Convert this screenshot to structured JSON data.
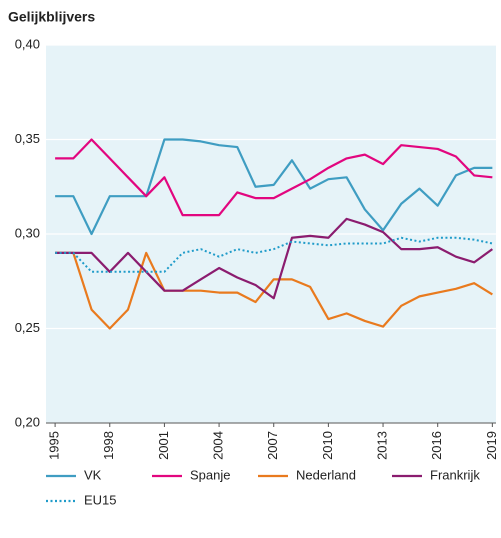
{
  "chart_data": {
    "type": "line",
    "title": "Gelijkblijvers",
    "x": [
      1995,
      1996,
      1997,
      1998,
      1999,
      2000,
      2001,
      2002,
      2003,
      2004,
      2005,
      2006,
      2007,
      2008,
      2009,
      2010,
      2011,
      2012,
      2013,
      2014,
      2015,
      2016,
      2017,
      2018,
      2019
    ],
    "xlim": [
      1994.5,
      2019.2
    ],
    "xticks": [
      1995,
      1998,
      2001,
      2004,
      2007,
      2010,
      2013,
      2016,
      2019
    ],
    "ylim": [
      0.2,
      0.4
    ],
    "yticks": [
      {
        "value": 0.2,
        "label": "0,20"
      },
      {
        "value": 0.25,
        "label": "0,25"
      },
      {
        "value": 0.3,
        "label": "0,30"
      },
      {
        "value": 0.35,
        "label": "0,35"
      },
      {
        "value": 0.4,
        "label": "0,40"
      }
    ],
    "grid": true,
    "series": [
      {
        "name": "VK",
        "color": "#3f9dc2",
        "values": [
          0.32,
          0.32,
          0.3,
          0.32,
          0.32,
          0.32,
          0.35,
          0.35,
          0.349,
          0.347,
          0.346,
          0.325,
          0.326,
          0.339,
          0.324,
          0.329,
          0.33,
          0.313,
          0.302,
          0.316,
          0.324,
          0.315,
          0.331,
          0.335,
          0.335
        ]
      },
      {
        "name": "Spanje",
        "color": "#e2067f",
        "values": [
          0.34,
          0.34,
          0.35,
          0.34,
          0.33,
          0.32,
          0.33,
          0.31,
          0.31,
          0.31,
          0.322,
          0.319,
          0.319,
          0.324,
          0.329,
          0.335,
          0.34,
          0.342,
          0.337,
          0.347,
          0.346,
          0.345,
          0.341,
          0.331,
          0.33
        ]
      },
      {
        "name": "Nederland",
        "color": "#e97a1e",
        "values": [
          0.29,
          0.29,
          0.26,
          0.25,
          0.26,
          0.29,
          0.27,
          0.27,
          0.27,
          0.269,
          0.269,
          0.264,
          0.276,
          0.276,
          0.272,
          0.255,
          0.258,
          0.254,
          0.251,
          0.262,
          0.267,
          0.269,
          0.271,
          0.274,
          0.268
        ]
      },
      {
        "name": "Frankrijk",
        "color": "#8b1c6f",
        "values": [
          0.29,
          0.29,
          0.29,
          0.28,
          0.29,
          0.28,
          0.27,
          0.27,
          0.276,
          0.282,
          0.277,
          0.273,
          0.266,
          0.298,
          0.299,
          0.298,
          0.308,
          0.305,
          0.301,
          0.292,
          0.292,
          0.293,
          0.288,
          0.285,
          0.292
        ]
      },
      {
        "name": "EU15",
        "color": "#1f9bc9",
        "dash": "dotted",
        "values": [
          0.29,
          0.29,
          0.28,
          0.28,
          0.28,
          0.28,
          0.28,
          0.29,
          0.292,
          0.288,
          0.292,
          0.29,
          0.292,
          0.296,
          0.295,
          0.294,
          0.295,
          0.295,
          0.295,
          0.298,
          0.296,
          0.298,
          0.298,
          0.297,
          0.295
        ]
      }
    ]
  }
}
